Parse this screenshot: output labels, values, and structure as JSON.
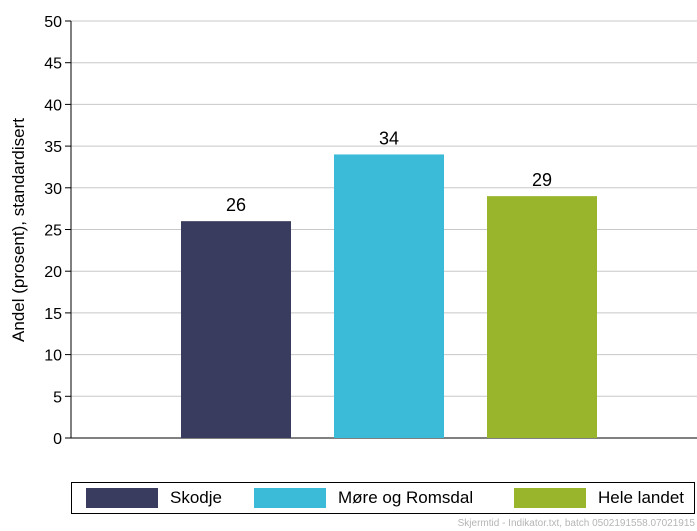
{
  "chart_data": {
    "type": "bar",
    "categories": [
      "Skodje",
      "Møre og Romsdal",
      "Hele landet"
    ],
    "values": [
      26,
      34,
      29
    ],
    "colors": [
      "#393b5f",
      "#3bbbd8",
      "#98b52c"
    ],
    "ylabel": "Andel (prosent), standardisert",
    "xlabel": "",
    "ylim": [
      0,
      50
    ],
    "yticks": [
      0,
      5,
      10,
      15,
      20,
      25,
      30,
      35,
      40,
      45,
      50
    ],
    "grid": true,
    "legend_placement": "bottom"
  },
  "legend": {
    "items": [
      {
        "label": "Skodje",
        "color": "#393b5f"
      },
      {
        "label": "Møre og Romsdal",
        "color": "#3bbbd8"
      },
      {
        "label": "Hele landet",
        "color": "#98b52c"
      }
    ]
  },
  "footer": {
    "text": "Skjermtid - Indikator.txt, batch 0502191558.07021915"
  }
}
